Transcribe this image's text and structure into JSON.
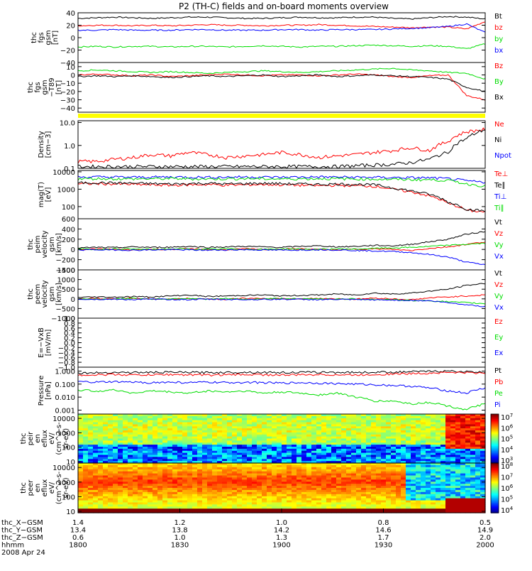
{
  "title": "P2 (TH-C) fields and on-board moments overview",
  "colors": {
    "black": "#000000",
    "red": "#ff0000",
    "green": "#00dd00",
    "blue": "#0000ff",
    "yellow": "#ffff00"
  },
  "chart_data": [
    {
      "type": "line",
      "ylabel": [
        "thc",
        "fgs",
        "gsm",
        "[nT]"
      ],
      "ylim": [
        -40,
        40
      ],
      "yticks": [
        {
          "v": 40,
          "t": "40"
        },
        {
          "v": 20,
          "t": "20"
        },
        {
          "v": 0,
          "t": "0"
        },
        {
          "v": -20,
          "t": "−20"
        },
        {
          "v": -40,
          "t": "−40"
        }
      ],
      "series": [
        {
          "name": "Bt",
          "color": "black",
          "values": [
            31,
            32,
            33,
            32,
            31,
            32,
            33,
            33,
            32,
            31,
            31,
            32,
            33,
            32,
            32,
            33,
            33,
            31,
            30,
            32,
            34,
            33,
            30
          ]
        },
        {
          "name": "bz",
          "color": "red",
          "values": [
            19,
            20,
            20,
            19,
            20,
            19,
            20,
            21,
            20,
            20,
            19,
            20,
            20,
            21,
            20,
            19,
            18,
            17,
            16,
            17,
            17,
            14,
            26
          ]
        },
        {
          "name": "by",
          "color": "green",
          "values": [
            -15,
            -14,
            -15,
            -14,
            -14,
            -15,
            -14,
            -14,
            -15,
            -14,
            -13,
            -14,
            -15,
            -14,
            -14,
            -13,
            -12,
            -13,
            -14,
            -13,
            -14,
            -18,
            -10
          ]
        },
        {
          "name": "bx",
          "color": "blue",
          "values": [
            12,
            12,
            13,
            12,
            12,
            12,
            13,
            13,
            12,
            12,
            12,
            13,
            13,
            12,
            13,
            13,
            13,
            14,
            15,
            16,
            18,
            22,
            8
          ]
        }
      ]
    },
    {
      "type": "line",
      "ylabel": [
        "thc",
        "fgs",
        "gsm",
        "−T89",
        "[nT]"
      ],
      "ylim": [
        -45,
        15
      ],
      "yticks": [
        {
          "v": 10,
          "t": "10"
        },
        {
          "v": 0,
          "t": "0"
        },
        {
          "v": -10,
          "t": "−10"
        },
        {
          "v": -20,
          "t": "−20"
        },
        {
          "v": -30,
          "t": "−30"
        },
        {
          "v": -40,
          "t": "−40"
        }
      ],
      "series": [
        {
          "name": "Bz",
          "color": "red",
          "values": [
            0,
            1,
            0,
            -1,
            0,
            -2,
            -1,
            0,
            1,
            0,
            -1,
            0,
            0,
            -1,
            0,
            1,
            0,
            -2,
            -3,
            -1,
            0,
            -25,
            -30
          ]
        },
        {
          "name": "By",
          "color": "green",
          "values": [
            5,
            6,
            5,
            4,
            3,
            4,
            3,
            2,
            3,
            4,
            5,
            4,
            3,
            4,
            5,
            6,
            7,
            8,
            6,
            5,
            3,
            2,
            -5
          ]
        },
        {
          "name": "Bx",
          "color": "black",
          "values": [
            -2,
            -1,
            -2,
            -1,
            -2,
            -3,
            -2,
            -1,
            -2,
            -1,
            0,
            -2,
            -1,
            0,
            -2,
            -1,
            0,
            -1,
            -2,
            -3,
            -5,
            -15,
            -20
          ]
        }
      ]
    },
    {
      "type": "line",
      "ylabel": [
        "Density",
        "[cm−3]"
      ],
      "ylim": [
        0.1,
        12
      ],
      "yscale": "log",
      "yticks": [
        {
          "v": 10,
          "t": "10.0"
        },
        {
          "v": 1,
          "t": "1.0"
        },
        {
          "v": 0.1,
          "t": "0.1"
        }
      ],
      "series": [
        {
          "name": "Ne",
          "color": "red",
          "values": [
            0.2,
            0.2,
            0.25,
            0.3,
            0.4,
            0.35,
            0.5,
            0.4,
            0.3,
            0.35,
            0.4,
            0.5,
            0.4,
            0.3,
            0.35,
            0.4,
            0.5,
            0.6,
            0.8,
            0.6,
            1.5,
            4,
            5
          ]
        },
        {
          "name": "Ni",
          "color": "black",
          "values": [
            0.12,
            0.12,
            0.12,
            0.12,
            0.12,
            0.12,
            0.12,
            0.12,
            0.12,
            0.12,
            0.12,
            0.12,
            0.12,
            0.12,
            0.12,
            0.13,
            0.14,
            0.15,
            0.18,
            0.25,
            0.5,
            2,
            5
          ]
        },
        {
          "name": "Npot",
          "color": "blue",
          "values": []
        }
      ]
    },
    {
      "type": "line",
      "ylabel": [
        "mag(T)",
        "[eV]"
      ],
      "ylim": [
        20,
        12000
      ],
      "yscale": "log",
      "yticks": [
        {
          "v": 10000,
          "t": "10000"
        },
        {
          "v": 1000,
          "t": "1000"
        },
        {
          "v": 100,
          "t": "100"
        }
      ],
      "series": [
        {
          "name": "Te⊥",
          "color": "red",
          "values": [
            2000,
            2100,
            2000,
            1900,
            1800,
            1700,
            1800,
            1900,
            1700,
            1800,
            1900,
            1800,
            1700,
            1600,
            1700,
            1600,
            1500,
            1000,
            700,
            400,
            150,
            60,
            50
          ]
        },
        {
          "name": "Te∥",
          "color": "black",
          "values": [
            2300,
            2400,
            2300,
            2200,
            2100,
            2000,
            2100,
            2200,
            2000,
            2100,
            2200,
            2100,
            2000,
            1900,
            2000,
            1900,
            1800,
            1200,
            800,
            500,
            180,
            70,
            55
          ]
        },
        {
          "name": "Ti⊥",
          "color": "blue",
          "values": [
            5000,
            5100,
            5000,
            4900,
            5000,
            5100,
            5000,
            4900,
            5000,
            5100,
            5000,
            4900,
            5000,
            5100,
            5000,
            4900,
            4800,
            4700,
            4600,
            4500,
            4000,
            3000,
            2500
          ]
        },
        {
          "name": "Ti∥",
          "color": "green",
          "values": [
            4000,
            4100,
            4000,
            3900,
            4000,
            4100,
            4000,
            3900,
            4000,
            4100,
            4000,
            3900,
            4000,
            4100,
            4000,
            3900,
            3800,
            3700,
            3600,
            3500,
            3200,
            2000,
            1500
          ]
        }
      ]
    },
    {
      "type": "line",
      "ylabel": [
        "thc",
        "peim",
        "velocity",
        "gsm",
        "[km/s]"
      ],
      "ylim": [
        -400,
        600
      ],
      "yticks": [
        {
          "v": 600,
          "t": "600"
        },
        {
          "v": 400,
          "t": "400"
        },
        {
          "v": 200,
          "t": "200"
        },
        {
          "v": 0,
          "t": "0"
        },
        {
          "v": -200,
          "t": "−200"
        },
        {
          "v": -400,
          "t": "−400"
        }
      ],
      "series": [
        {
          "name": "Vt",
          "color": "black",
          "values": [
            30,
            40,
            35,
            50,
            40,
            45,
            60,
            40,
            50,
            60,
            50,
            40,
            60,
            70,
            50,
            60,
            80,
            70,
            100,
            150,
            200,
            300,
            350
          ]
        },
        {
          "name": "Vz",
          "color": "red",
          "values": [
            0,
            10,
            0,
            -10,
            5,
            0,
            10,
            0,
            -5,
            10,
            0,
            5,
            10,
            0,
            -10,
            5,
            10,
            0,
            -20,
            20,
            50,
            100,
            150
          ]
        },
        {
          "name": "Vy",
          "color": "green",
          "values": [
            5,
            0,
            10,
            5,
            0,
            10,
            5,
            0,
            10,
            5,
            0,
            10,
            5,
            0,
            10,
            5,
            20,
            30,
            40,
            60,
            80,
            100,
            120
          ]
        },
        {
          "name": "Vx",
          "color": "blue",
          "values": [
            -10,
            -5,
            -10,
            -15,
            -10,
            -5,
            -10,
            -15,
            -10,
            -5,
            -10,
            -15,
            -10,
            -5,
            -10,
            -20,
            -30,
            -40,
            -60,
            -100,
            -150,
            -250,
            -300
          ]
        }
      ]
    },
    {
      "type": "line",
      "ylabel": [
        "thc",
        "peem",
        "velocity",
        "gsm",
        "[km/s]"
      ],
      "ylim": [
        -1000,
        1500
      ],
      "yticks": [
        {
          "v": 1500,
          "t": "1500"
        },
        {
          "v": 1000,
          "t": "1000"
        },
        {
          "v": 500,
          "t": "500"
        },
        {
          "v": 0,
          "t": "0"
        },
        {
          "v": -500,
          "t": "−500"
        },
        {
          "v": -1000,
          "t": "−1000"
        }
      ],
      "series": [
        {
          "name": "Vt",
          "color": "black",
          "values": [
            80,
            100,
            90,
            120,
            100,
            150,
            200,
            120,
            150,
            180,
            200,
            150,
            180,
            200,
            250,
            200,
            300,
            250,
            300,
            400,
            500,
            700,
            800
          ]
        },
        {
          "name": "Vz",
          "color": "red",
          "values": [
            0,
            20,
            -10,
            30,
            0,
            -20,
            20,
            0,
            -20,
            30,
            0,
            20,
            -10,
            30,
            0,
            -20,
            40,
            0,
            -50,
            50,
            100,
            150,
            200
          ]
        },
        {
          "name": "Vy",
          "color": "green",
          "values": [
            10,
            -20,
            0,
            20,
            -10,
            0,
            30,
            -20,
            10,
            -30,
            0,
            20,
            -10,
            10,
            -20,
            0,
            -30,
            -50,
            -80,
            -100,
            -150,
            -200,
            -250
          ]
        },
        {
          "name": "Vx",
          "color": "blue",
          "values": [
            -20,
            -30,
            -20,
            -40,
            -20,
            -30,
            -40,
            -20,
            -30,
            -40,
            -30,
            -20,
            -30,
            -40,
            -30,
            -40,
            -50,
            -60,
            -80,
            -100,
            -200,
            -300,
            -400
          ]
        }
      ]
    },
    {
      "type": "line",
      "ylabel": [
        "E=−VxB",
        "[mV/m]"
      ],
      "ylim": [
        -1,
        1
      ],
      "yticks": [
        {
          "v": 1,
          "t": "1.0"
        },
        {
          "v": 0.8,
          "t": "0.8"
        },
        {
          "v": 0.6,
          "t": "0.6"
        },
        {
          "v": 0.4,
          "t": "0.4"
        },
        {
          "v": 0.2,
          "t": "0.2"
        },
        {
          "v": 0,
          "t": "0.0"
        },
        {
          "v": -0.2,
          "t": "−0.2"
        },
        {
          "v": -0.4,
          "t": "−0.4"
        },
        {
          "v": -0.6,
          "t": "−0.6"
        },
        {
          "v": -0.8,
          "t": "−0.8"
        },
        {
          "v": -1,
          "t": "−1.0"
        }
      ],
      "series": [
        {
          "name": "Ez",
          "color": "red",
          "values": []
        },
        {
          "name": "Ey",
          "color": "green",
          "values": []
        },
        {
          "name": "Ex",
          "color": "blue",
          "values": []
        }
      ]
    },
    {
      "type": "line",
      "ylabel": [
        "Pressure",
        "[nPa]"
      ],
      "ylim": [
        0.0005,
        2
      ],
      "yscale": "log",
      "yticks": [
        {
          "v": 1,
          "t": "1.000"
        },
        {
          "v": 0.1,
          "t": "0.100"
        },
        {
          "v": 0.01,
          "t": "0.010"
        },
        {
          "v": 0.001,
          "t": "0.001"
        }
      ],
      "series": [
        {
          "name": "Pt",
          "color": "black",
          "values": [
            0.7,
            0.75,
            0.8,
            0.78,
            0.8,
            0.82,
            0.8,
            0.78,
            0.8,
            0.82,
            0.8,
            0.78,
            0.8,
            0.82,
            0.8,
            0.8,
            0.82,
            0.85,
            0.9,
            0.95,
            1.0,
            0.9,
            0.8
          ]
        },
        {
          "name": "Pb",
          "color": "red",
          "values": [
            0.5,
            0.52,
            0.55,
            0.5,
            0.52,
            0.55,
            0.52,
            0.5,
            0.52,
            0.55,
            0.52,
            0.5,
            0.52,
            0.55,
            0.52,
            0.5,
            0.55,
            0.6,
            0.65,
            0.7,
            0.8,
            0.75,
            0.7
          ]
        },
        {
          "name": "Pe",
          "color": "green",
          "values": [
            0.035,
            0.03,
            0.035,
            0.02,
            0.03,
            0.025,
            0.02,
            0.03,
            0.025,
            0.03,
            0.02,
            0.025,
            0.02,
            0.015,
            0.02,
            0.01,
            0.005,
            0.005,
            0.003,
            0.004,
            0.002,
            0.001,
            0.003
          ]
        },
        {
          "name": "Pi",
          "color": "blue",
          "values": [
            0.15,
            0.14,
            0.15,
            0.14,
            0.13,
            0.14,
            0.13,
            0.14,
            0.13,
            0.14,
            0.13,
            0.12,
            0.13,
            0.12,
            0.11,
            0.1,
            0.09,
            0.08,
            0.07,
            0.05,
            0.03,
            0.02,
            0.05
          ]
        }
      ]
    },
    {
      "type": "heatmap",
      "ylabel": [
        "thc",
        "peir",
        "en",
        "eflux",
        "eV/",
        "(cm^2-s-",
        "sr-eV)"
      ],
      "ylim": [
        8,
        20000
      ],
      "yscale": "log",
      "yticks": [
        {
          "v": 10000,
          "t": "10000"
        },
        {
          "v": 1000,
          "t": "1000"
        },
        {
          "v": 100,
          "t": "100"
        },
        {
          "v": 10,
          "t": "10"
        }
      ],
      "colorbar": {
        "min_exp": 3,
        "max_exp": 7
      }
    },
    {
      "type": "heatmap",
      "ylabel": [
        "thc",
        "peer",
        "en",
        "eflux",
        "eV/",
        "(cm^2-s-",
        "sr-eV)"
      ],
      "ylim": [
        8,
        20000
      ],
      "yscale": "log",
      "yticks": [
        {
          "v": 10000,
          "t": "10000"
        },
        {
          "v": 1000,
          "t": "1000"
        },
        {
          "v": 100,
          "t": "100"
        },
        {
          "v": 10,
          "t": "10"
        }
      ],
      "colorbar": {
        "min_exp": 4,
        "max_exp": 8
      }
    }
  ],
  "xaxis": {
    "rows": [
      {
        "label": "thc_X−GSM",
        "values": [
          "1.4",
          "1.2",
          "1.0",
          "0.8",
          "0.5"
        ]
      },
      {
        "label": "thc_Y−GSM",
        "values": [
          "13.4",
          "13.8",
          "14.2",
          "14.6",
          "14.9"
        ]
      },
      {
        "label": "thc_Z−GSM",
        "values": [
          "0.6",
          "1.0",
          "1.3",
          "1.7",
          "2.0"
        ]
      },
      {
        "label": "hhmm",
        "values": [
          "1800",
          "1830",
          "1900",
          "1930",
          "2000"
        ]
      }
    ],
    "date": "2008 Apr 24"
  }
}
